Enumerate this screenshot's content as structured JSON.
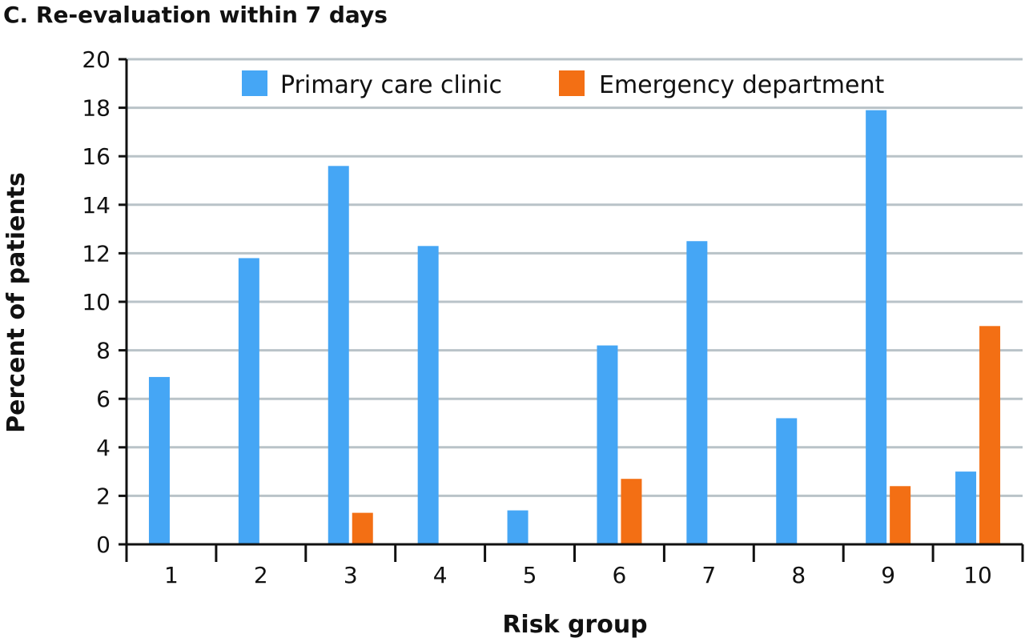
{
  "chart_data": {
    "type": "bar",
    "title": "C. Re-evaluation within 7 days",
    "xlabel": "Risk group",
    "ylabel": "Percent of patients",
    "categories": [
      "1",
      "2",
      "3",
      "4",
      "5",
      "6",
      "7",
      "8",
      "9",
      "10"
    ],
    "series": [
      {
        "name": "Primary care clinic",
        "color": "#45a6f5",
        "values": [
          6.9,
          11.8,
          15.6,
          12.3,
          1.4,
          8.2,
          12.5,
          5.2,
          17.9,
          3.0
        ]
      },
      {
        "name": "Emergency department",
        "color": "#f36f14",
        "values": [
          0,
          0,
          1.3,
          0,
          0,
          2.7,
          0,
          0,
          2.4,
          9.0
        ]
      }
    ],
    "ylim": [
      0,
      20
    ],
    "yticks": [
      0,
      2,
      4,
      6,
      8,
      10,
      12,
      14,
      16,
      18,
      20
    ],
    "grid": true,
    "legend_position": "top"
  }
}
